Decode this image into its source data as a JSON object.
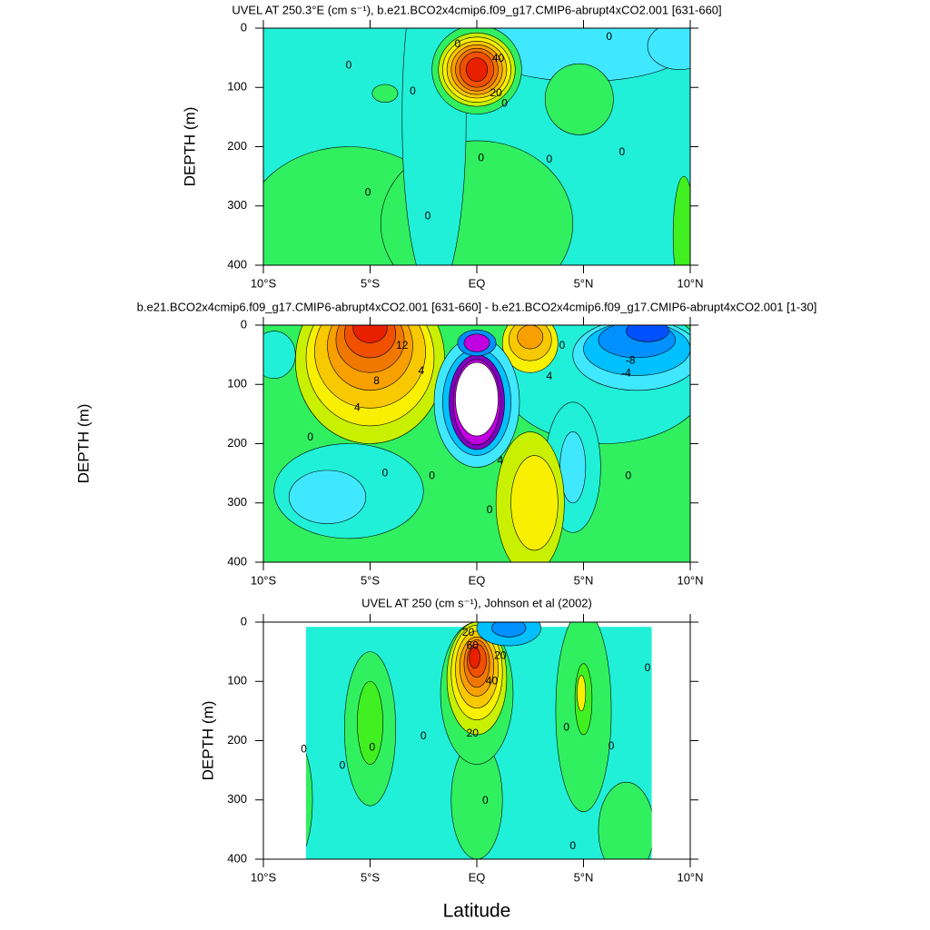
{
  "chart_data": [
    {
      "type": "contour",
      "title": "UVEL AT 250.3°E (cm s⁻¹), b.e21.BCO2x4cmip6.f09_g17.CMIP6-abrupt4xCO2.001 [631-660]",
      "y_label": "DEPTH (m)",
      "xlim": [
        -10,
        10
      ],
      "ylim": [
        400,
        0
      ],
      "xticks": [
        {
          "value": -10,
          "label": "10°S"
        },
        {
          "value": -5,
          "label": "5°S"
        },
        {
          "value": 0,
          "label": "EQ"
        },
        {
          "value": 5,
          "label": "5°N"
        },
        {
          "value": 10,
          "label": "10°N"
        }
      ],
      "yticks": [
        0,
        100,
        200,
        300,
        400
      ],
      "annotations": [
        "0",
        "40",
        "0",
        "20",
        "0",
        "0",
        "0",
        "0",
        "0",
        "0",
        "0",
        "0"
      ]
    },
    {
      "type": "contour",
      "title": "b.e21.BCO2x4cmip6.f09_g17.CMIP6-abrupt4xCO2.001 [631-660] - b.e21.BCO2x4cmip6.f09_g17.CMIP6-abrupt4xCO2.001 [1-30]",
      "y_label": "DEPTH (m)",
      "xlim": [
        -10,
        10
      ],
      "ylim": [
        400,
        0
      ],
      "xticks": [
        {
          "value": -10,
          "label": "10°S"
        },
        {
          "value": -5,
          "label": "5°S"
        },
        {
          "value": 0,
          "label": "EQ"
        },
        {
          "value": 5,
          "label": "5°N"
        },
        {
          "value": 10,
          "label": "10°N"
        }
      ],
      "yticks": [
        0,
        100,
        200,
        300,
        400
      ],
      "annotations": [
        "12",
        "8",
        "4",
        "4",
        "-8",
        "-4",
        "0",
        "4",
        "4",
        "0",
        "0",
        "0",
        "0",
        "0"
      ]
    },
    {
      "type": "contour",
      "title": "UVEL AT 250 (cm s⁻¹), Johnson et al (2002)",
      "y_label": "DEPTH (m)",
      "x_label": "Latitude",
      "xlim": [
        -10,
        10
      ],
      "ylim": [
        400,
        0
      ],
      "xticks": [
        {
          "value": -10,
          "label": "10°S"
        },
        {
          "value": -5,
          "label": "5°S"
        },
        {
          "value": 0,
          "label": "EQ"
        },
        {
          "value": 5,
          "label": "5°N"
        },
        {
          "value": 10,
          "label": "10°N"
        }
      ],
      "yticks": [
        0,
        100,
        200,
        300,
        400
      ],
      "annotations": [
        "20",
        "60",
        "20",
        "40",
        "20",
        "0",
        "0",
        "0",
        "0",
        "0",
        "0",
        "0",
        "0",
        "0"
      ]
    }
  ]
}
